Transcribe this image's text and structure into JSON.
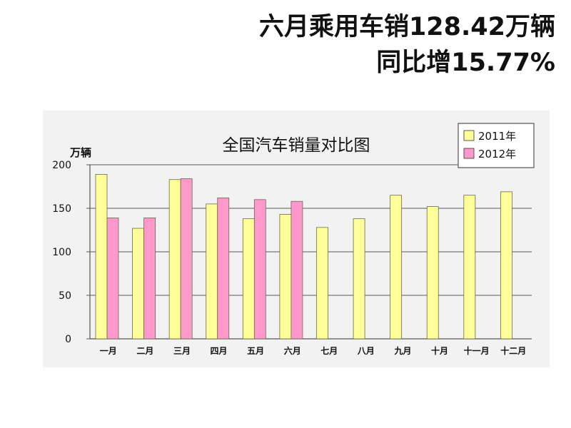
{
  "headline": {
    "line1": "六月乘用车销128.42万辆",
    "line2": "同比增15.77%"
  },
  "chart_data": {
    "type": "bar",
    "title": "全国汽车销量对比图",
    "ylabel": "万辆",
    "xlabel": "",
    "ylim": [
      0,
      200
    ],
    "yticks": [
      0,
      50,
      100,
      150,
      200
    ],
    "grid": true,
    "legend_position": "top-right",
    "categories": [
      "一月",
      "二月",
      "三月",
      "四月",
      "五月",
      "六月",
      "七月",
      "八月",
      "九月",
      "十月",
      "十一月",
      "十二月"
    ],
    "series": [
      {
        "name": "2011年",
        "color": "#ffff99",
        "values": [
          189,
          127,
          183,
          155,
          138,
          143,
          128,
          138,
          165,
          152,
          165,
          169
        ]
      },
      {
        "name": "2012年",
        "color": "#ff99cc",
        "values": [
          139,
          139,
          184,
          162,
          160,
          158,
          null,
          null,
          null,
          null,
          null,
          null
        ]
      }
    ]
  }
}
